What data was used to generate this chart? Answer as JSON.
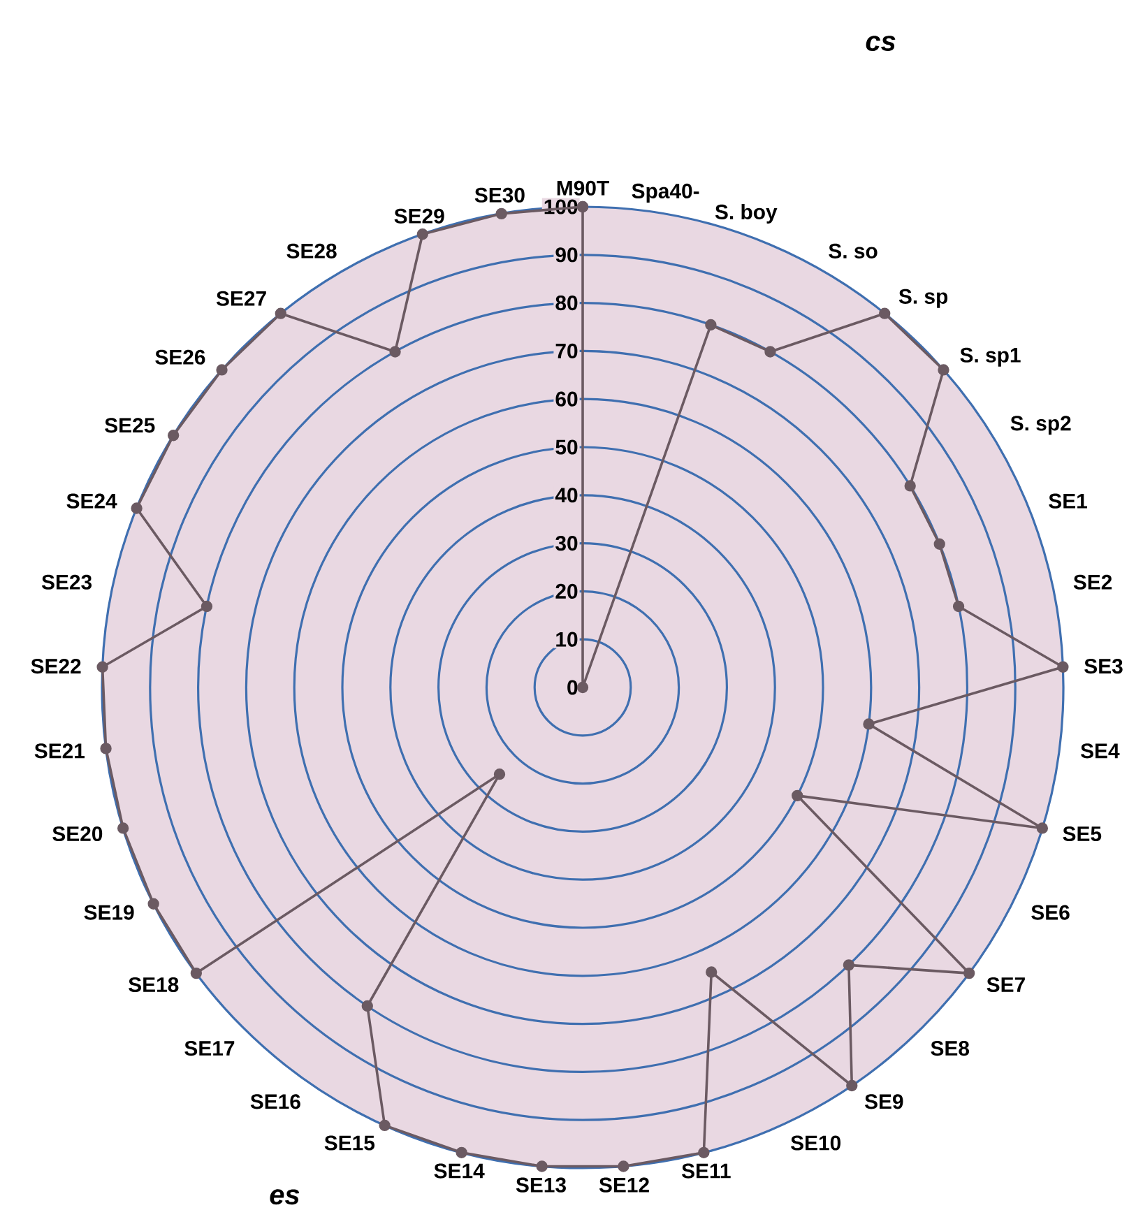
{
  "chart_data": {
    "type": "radar",
    "categories": [
      "M90T",
      "Spa40-",
      "S. boy",
      "S. so",
      "S. sp",
      "S. sp1",
      "S. sp2",
      "SE1",
      "SE2",
      "SE3",
      "SE4",
      "SE5",
      "SE6",
      "SE7",
      "SE8",
      "SE9",
      "SE10",
      "SE11",
      "SE12",
      "SE13",
      "SE14",
      "SE15",
      "SE16",
      "SE17",
      "SE18",
      "SE19",
      "SE20",
      "SE21",
      "SE22",
      "SE23",
      "SE24",
      "SE25",
      "SE26",
      "SE27",
      "SE28",
      "SE29",
      "SE30"
    ],
    "series": [
      {
        "color": "#6b5a62",
        "values": [
          100,
          0,
          80,
          80,
          100,
          100,
          80,
          80,
          80,
          100,
          60,
          100,
          50,
          100,
          80,
          100,
          65,
          100,
          100,
          100,
          100,
          100,
          80,
          25,
          100,
          100,
          100,
          100,
          100,
          80,
          100,
          100,
          100,
          100,
          80,
          100,
          100
        ]
      }
    ],
    "ylim": [
      0,
      100
    ],
    "yticks": [
      0,
      10,
      20,
      30,
      40,
      50,
      60,
      70,
      80,
      90,
      100
    ],
    "grid": "y",
    "marker": "circle",
    "line_style": "solid",
    "annotations": [
      "cs",
      "es"
    ]
  }
}
